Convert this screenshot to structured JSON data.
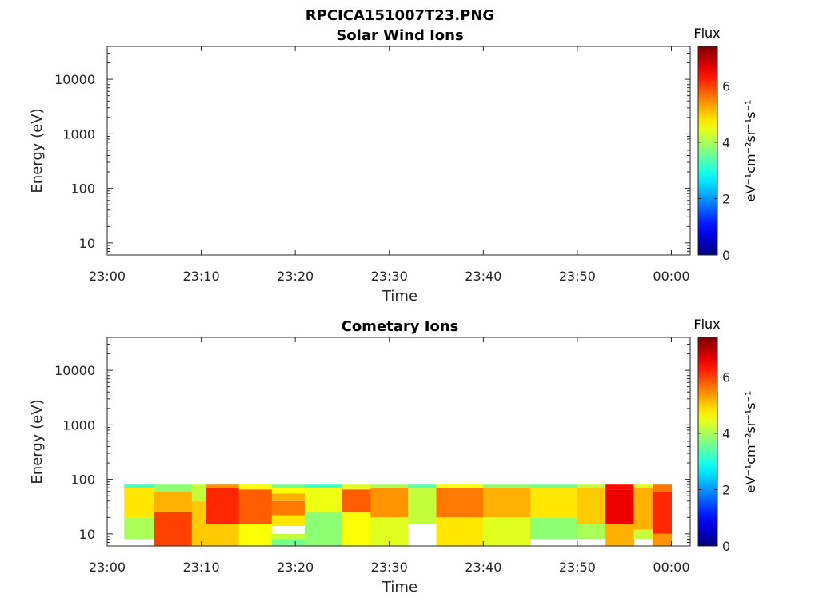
{
  "figure": {
    "title": "RPCICA151007T23.PNG"
  },
  "chart_data": [
    {
      "type": "heatmap",
      "title": "Solar Wind Ions",
      "xlabel": "Time",
      "ylabel": "Energy (eV)",
      "x_ticks": [
        "23:00",
        "23:10",
        "23:20",
        "23:30",
        "23:40",
        "23:50",
        "00:00"
      ],
      "y_ticks": [
        "10",
        "100",
        "1000",
        "10000"
      ],
      "y_scale": "log",
      "y_range": [
        6,
        40000
      ],
      "x_range_minutes": [
        0,
        62
      ],
      "colorbar": {
        "label": "Flux",
        "units": "eV⁻¹cm⁻²sr⁻¹s⁻¹",
        "ticks": [
          "0",
          "2",
          "4",
          "6"
        ],
        "range": [
          0,
          7.4
        ]
      },
      "cells": []
    },
    {
      "type": "heatmap",
      "title": "Cometary Ions",
      "xlabel": "Time",
      "ylabel": "Energy (eV)",
      "x_ticks": [
        "23:00",
        "23:10",
        "23:20",
        "23:30",
        "23:40",
        "23:50",
        "00:00"
      ],
      "y_ticks": [
        "10",
        "100",
        "1000",
        "10000"
      ],
      "y_scale": "log",
      "y_range": [
        6,
        40000
      ],
      "x_range_minutes": [
        0,
        62
      ],
      "colorbar": {
        "label": "Flux",
        "units": "eV⁻¹cm⁻²sr⁻¹s⁻¹",
        "ticks": [
          "0",
          "2",
          "4",
          "6"
        ],
        "range": [
          0,
          7.4
        ]
      },
      "data_x_extent_minutes": [
        1.8,
        60
      ],
      "data_energy_extent_eV": [
        6,
        80
      ],
      "cells": [
        {
          "t0": 1.8,
          "t1": 5,
          "segments": [
            [
              70,
              80,
              3.3
            ],
            [
              20,
              70,
              4.8
            ],
            [
              8,
              20,
              4.0
            ]
          ]
        },
        {
          "t0": 5,
          "t1": 9,
          "segments": [
            [
              60,
              80,
              3.8
            ],
            [
              25,
              60,
              5.2
            ],
            [
              6,
              25,
              6.0
            ]
          ]
        },
        {
          "t0": 9,
          "t1": 10.5,
          "segments": [
            [
              40,
              80,
              4.2
            ],
            [
              6,
              40,
              5.0
            ]
          ]
        },
        {
          "t0": 10.5,
          "t1": 14,
          "segments": [
            [
              70,
              80,
              5.4
            ],
            [
              15,
              70,
              6.2
            ],
            [
              6,
              15,
              5.0
            ]
          ]
        },
        {
          "t0": 14,
          "t1": 17.5,
          "segments": [
            [
              65,
              80,
              4.6
            ],
            [
              15,
              65,
              5.8
            ],
            [
              6,
              15,
              4.6
            ]
          ]
        },
        {
          "t0": 17.5,
          "t1": 21,
          "segments": [
            [
              70,
              80,
              3.6
            ],
            [
              55,
              70,
              4.6
            ],
            [
              40,
              55,
              5.2
            ],
            [
              22,
              40,
              5.6
            ],
            [
              14,
              22,
              4.8
            ],
            [
              10,
              14,
              0
            ],
            [
              8,
              10,
              4.2
            ],
            [
              6,
              8,
              3.6
            ]
          ]
        },
        {
          "t0": 21,
          "t1": 25,
          "segments": [
            [
              70,
              80,
              3.2
            ],
            [
              25,
              70,
              4.5
            ],
            [
              6,
              25,
              3.8
            ]
          ]
        },
        {
          "t0": 25,
          "t1": 28,
          "segments": [
            [
              65,
              80,
              4.4
            ],
            [
              25,
              65,
              5.8
            ],
            [
              6,
              25,
              4.6
            ]
          ]
        },
        {
          "t0": 28,
          "t1": 32,
          "segments": [
            [
              70,
              80,
              4.0
            ],
            [
              20,
              70,
              5.4
            ],
            [
              6,
              20,
              4.4
            ]
          ]
        },
        {
          "t0": 32,
          "t1": 35,
          "segments": [
            [
              70,
              80,
              3.4
            ],
            [
              15,
              70,
              4.2
            ]
          ]
        },
        {
          "t0": 35,
          "t1": 40,
          "segments": [
            [
              70,
              80,
              4.6
            ],
            [
              20,
              70,
              5.6
            ],
            [
              6,
              20,
              4.8
            ]
          ]
        },
        {
          "t0": 40,
          "t1": 45,
          "segments": [
            [
              70,
              80,
              3.8
            ],
            [
              20,
              70,
              5.2
            ],
            [
              6,
              20,
              4.4
            ]
          ]
        },
        {
          "t0": 45,
          "t1": 50,
          "segments": [
            [
              70,
              80,
              3.6
            ],
            [
              20,
              70,
              4.8
            ],
            [
              8,
              20,
              3.8
            ]
          ]
        },
        {
          "t0": 50,
          "t1": 53,
          "segments": [
            [
              70,
              80,
              4.2
            ],
            [
              15,
              70,
              5.0
            ],
            [
              8,
              15,
              4.0
            ]
          ]
        },
        {
          "t0": 53,
          "t1": 56,
          "segments": [
            [
              65,
              80,
              6.4
            ],
            [
              15,
              65,
              6.6
            ],
            [
              6,
              15,
              5.2
            ]
          ]
        },
        {
          "t0": 56,
          "t1": 58,
          "segments": [
            [
              70,
              80,
              4.4
            ],
            [
              12,
              70,
              5.2
            ],
            [
              8,
              12,
              4.2
            ]
          ]
        },
        {
          "t0": 58,
          "t1": 60,
          "segments": [
            [
              60,
              80,
              5.6
            ],
            [
              10,
              60,
              6.2
            ],
            [
              6,
              10,
              5.4
            ]
          ]
        }
      ]
    }
  ]
}
